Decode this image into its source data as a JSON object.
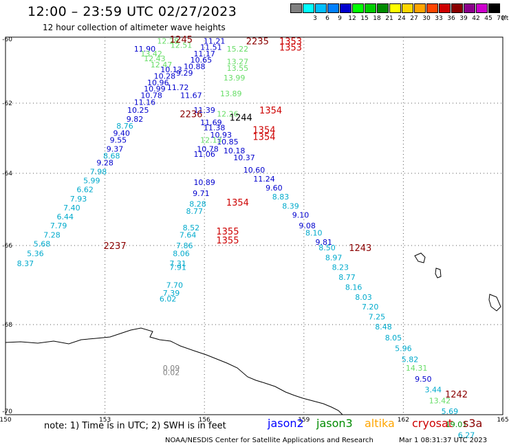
{
  "title": "12:00 – 23:59 UTC 02/27/2023",
  "subtitle": "12 hour collection of altimeter wave heights",
  "legend": {
    "unit": "(ft)",
    "swatches": [
      {
        "color": "#808080",
        "label": ""
      },
      {
        "color": "#00ffff",
        "label": "3"
      },
      {
        "color": "#00bfff",
        "label": "6"
      },
      {
        "color": "#0080ff",
        "label": "9"
      },
      {
        "color": "#0000cd",
        "label": "12"
      },
      {
        "color": "#00ff00",
        "label": "15"
      },
      {
        "color": "#00cd00",
        "label": "18"
      },
      {
        "color": "#008b00",
        "label": "21"
      },
      {
        "color": "#ffff00",
        "label": "24"
      },
      {
        "color": "#ffd700",
        "label": "27"
      },
      {
        "color": "#ffa500",
        "label": "30"
      },
      {
        "color": "#ff4500",
        "label": "33"
      },
      {
        "color": "#cd0000",
        "label": "36"
      },
      {
        "color": "#8b0000",
        "label": "39"
      },
      {
        "color": "#8b008b",
        "label": "42"
      },
      {
        "color": "#cd00cd",
        "label": "45"
      },
      {
        "color": "#000000",
        "label": "70"
      }
    ]
  },
  "axes": {
    "lon_ticks": [
      "150",
      "153",
      "156",
      "159",
      "162",
      "165"
    ],
    "lat_ticks": [
      "-60",
      "-62",
      "-64",
      "-66",
      "-68",
      "-70"
    ]
  },
  "footnote": "note: 1) Time is in UTC; 2) SWH is in feet",
  "satellites": [
    {
      "name": "jason2",
      "color": "#0000ff"
    },
    {
      "name": "jason3",
      "color": "#008b00"
    },
    {
      "name": "altika",
      "color": "#ffa500"
    },
    {
      "name": "cryosat",
      "color": "#cd0000"
    },
    {
      "name": "s3a",
      "color": "#8b0000"
    }
  ],
  "credit": "NOAA/NESDIS Center for Satellite Applications and Research",
  "credit_date": "Mar  1 08:31:37 UTC 2023",
  "observations": [
    {
      "lon": 154.9,
      "lat": -60.05,
      "v": "12.28",
      "c": "#66dd66"
    },
    {
      "lon": 155.3,
      "lat": -60.18,
      "v": "12.51",
      "c": "#66dd66"
    },
    {
      "lon": 154.2,
      "lat": -60.3,
      "v": "11.90",
      "c": "#0000cd"
    },
    {
      "lon": 154.4,
      "lat": -60.45,
      "v": "13.42",
      "c": "#66dd66"
    },
    {
      "lon": 154.5,
      "lat": -60.6,
      "v": "12.43",
      "c": "#66dd66"
    },
    {
      "lon": 154.7,
      "lat": -60.8,
      "v": "12.47",
      "c": "#66dd66"
    },
    {
      "lon": 155.0,
      "lat": -60.95,
      "v": "10.13",
      "c": "#0000cd"
    },
    {
      "lon": 154.8,
      "lat": -61.15,
      "v": "10.28",
      "c": "#0000cd"
    },
    {
      "lon": 154.6,
      "lat": -61.35,
      "v": "10.96",
      "c": "#0000cd"
    },
    {
      "lon": 154.5,
      "lat": -61.55,
      "v": "10.99",
      "c": "#0000cd"
    },
    {
      "lon": 154.4,
      "lat": -61.75,
      "v": "10.78",
      "c": "#0000cd"
    },
    {
      "lon": 154.2,
      "lat": -61.97,
      "v": "11.16",
      "c": "#0000cd"
    },
    {
      "lon": 154.0,
      "lat": -62.2,
      "v": "10.25",
      "c": "#0000cd"
    },
    {
      "lon": 153.9,
      "lat": -62.45,
      "v": "9.82",
      "c": "#0000cd"
    },
    {
      "lon": 153.6,
      "lat": -62.65,
      "v": "8.76",
      "c": "#00aacc"
    },
    {
      "lon": 153.5,
      "lat": -62.85,
      "v": "9.40",
      "c": "#0000cd"
    },
    {
      "lon": 153.4,
      "lat": -63.05,
      "v": "9.55",
      "c": "#0000cd"
    },
    {
      "lon": 153.3,
      "lat": -63.3,
      "v": "9.37",
      "c": "#0000cd"
    },
    {
      "lon": 153.2,
      "lat": -63.5,
      "v": "8.68",
      "c": "#00aacc"
    },
    {
      "lon": 153.0,
      "lat": -63.7,
      "v": "9.28",
      "c": "#0000cd"
    },
    {
      "lon": 152.8,
      "lat": -63.95,
      "v": "7.98",
      "c": "#00aacc"
    },
    {
      "lon": 152.6,
      "lat": -64.2,
      "v": "5.99",
      "c": "#00aacc"
    },
    {
      "lon": 152.4,
      "lat": -64.45,
      "v": "6.62",
      "c": "#00aacc"
    },
    {
      "lon": 152.2,
      "lat": -64.7,
      "v": "7.93",
      "c": "#00aacc"
    },
    {
      "lon": 152.0,
      "lat": -64.95,
      "v": "7.40",
      "c": "#00aacc"
    },
    {
      "lon": 151.8,
      "lat": -65.2,
      "v": "6.44",
      "c": "#00aacc"
    },
    {
      "lon": 151.6,
      "lat": -65.45,
      "v": "7.79",
      "c": "#00aacc"
    },
    {
      "lon": 151.4,
      "lat": -65.7,
      "v": "7.28",
      "c": "#00aacc"
    },
    {
      "lon": 151.1,
      "lat": -65.95,
      "v": "5.68",
      "c": "#00aacc"
    },
    {
      "lon": 150.9,
      "lat": -66.2,
      "v": "5.36",
      "c": "#00aacc"
    },
    {
      "lon": 150.6,
      "lat": -66.45,
      "v": "8.37",
      "c": "#00aacc"
    },
    {
      "lon": 156.3,
      "lat": -60.05,
      "v": "11.21",
      "c": "#0000cd"
    },
    {
      "lon": 156.2,
      "lat": -60.25,
      "v": "11.51",
      "c": "#0000cd"
    },
    {
      "lon": 156.0,
      "lat": -60.45,
      "v": "11.17",
      "c": "#0000cd"
    },
    {
      "lon": 155.9,
      "lat": -60.65,
      "v": "10.65",
      "c": "#0000cd"
    },
    {
      "lon": 155.7,
      "lat": -60.85,
      "v": "10.88",
      "c": "#0000cd"
    },
    {
      "lon": 155.4,
      "lat": -61.05,
      "v": "9.29",
      "c": "#0000cd"
    },
    {
      "lon": 155.2,
      "lat": -61.5,
      "v": "11.72",
      "c": "#0000cd"
    },
    {
      "lon": 155.6,
      "lat": -61.75,
      "v": "11.67",
      "c": "#0000cd"
    },
    {
      "lon": 156.0,
      "lat": -62.2,
      "v": "11.39",
      "c": "#0000cd"
    },
    {
      "lon": 156.2,
      "lat": -62.55,
      "v": "11.69",
      "c": "#0000cd"
    },
    {
      "lon": 156.5,
      "lat": -62.9,
      "v": "10.93",
      "c": "#0000cd"
    },
    {
      "lon": 156.7,
      "lat": -63.1,
      "v": "10.85",
      "c": "#0000cd"
    },
    {
      "lon": 156.9,
      "lat": -63.35,
      "v": "10.18",
      "c": "#0000cd"
    },
    {
      "lon": 157.2,
      "lat": -63.55,
      "v": "10.37",
      "c": "#0000cd"
    },
    {
      "lon": 157.5,
      "lat": -63.9,
      "v": "10.60",
      "c": "#0000cd"
    },
    {
      "lon": 157.8,
      "lat": -64.15,
      "v": "11.24",
      "c": "#0000cd"
    },
    {
      "lon": 158.1,
      "lat": -64.4,
      "v": "9.60",
      "c": "#0000cd"
    },
    {
      "lon": 158.3,
      "lat": -64.65,
      "v": "8.83",
      "c": "#00aacc"
    },
    {
      "lon": 158.6,
      "lat": -64.9,
      "v": "8.39",
      "c": "#00aacc"
    },
    {
      "lon": 158.9,
      "lat": -65.15,
      "v": "9.10",
      "c": "#0000cd"
    },
    {
      "lon": 159.1,
      "lat": -65.45,
      "v": "9.08",
      "c": "#0000cd"
    },
    {
      "lon": 159.3,
      "lat": -65.65,
      "v": "8.10",
      "c": "#00aacc"
    },
    {
      "lon": 159.6,
      "lat": -65.9,
      "v": "9.81",
      "c": "#0000cd"
    },
    {
      "lon": 159.7,
      "lat": -66.05,
      "v": "8.50",
      "c": "#00aacc"
    },
    {
      "lon": 159.9,
      "lat": -66.3,
      "v": "8.97",
      "c": "#00aacc"
    },
    {
      "lon": 160.1,
      "lat": -66.55,
      "v": "8.23",
      "c": "#00aacc"
    },
    {
      "lon": 160.3,
      "lat": -66.8,
      "v": "8.77",
      "c": "#00aacc"
    },
    {
      "lon": 160.5,
      "lat": -67.05,
      "v": "8.16",
      "c": "#00aacc"
    },
    {
      "lon": 160.8,
      "lat": -67.3,
      "v": "8.03",
      "c": "#00aacc"
    },
    {
      "lon": 161.0,
      "lat": -67.55,
      "v": "7.20",
      "c": "#00aacc"
    },
    {
      "lon": 161.2,
      "lat": -67.8,
      "v": "7.25",
      "c": "#00aacc"
    },
    {
      "lon": 161.4,
      "lat": -68.05,
      "v": "8.48",
      "c": "#00aacc"
    },
    {
      "lon": 161.7,
      "lat": -68.3,
      "v": "8.05",
      "c": "#00aacc"
    },
    {
      "lon": 162.0,
      "lat": -68.55,
      "v": "5.96",
      "c": "#00aacc"
    },
    {
      "lon": 162.2,
      "lat": -68.8,
      "v": "5.82",
      "c": "#00aacc"
    },
    {
      "lon": 162.4,
      "lat": -69.0,
      "v": "14.31",
      "c": "#66dd66"
    },
    {
      "lon": 162.6,
      "lat": -69.25,
      "v": "9.50",
      "c": "#0000cd"
    },
    {
      "lon": 162.9,
      "lat": -69.5,
      "v": "3.44",
      "c": "#00aacc"
    },
    {
      "lon": 163.1,
      "lat": -69.75,
      "v": "13.42",
      "c": "#66dd66"
    },
    {
      "lon": 163.4,
      "lat": -70.0,
      "v": "5.69",
      "c": "#00aacc"
    },
    {
      "lon": 163.6,
      "lat": -70.3,
      "v": "19.01",
      "c": "#008b00"
    },
    {
      "lon": 163.9,
      "lat": -70.55,
      "v": "6.27",
      "c": "#00aacc"
    },
    {
      "lon": 157.0,
      "lat": -60.3,
      "v": "15.22",
      "c": "#66dd66"
    },
    {
      "lon": 157.0,
      "lat": -60.7,
      "v": "13.27",
      "c": "#66dd66"
    },
    {
      "lon": 157.0,
      "lat": -60.9,
      "v": "13.55",
      "c": "#66dd66"
    },
    {
      "lon": 156.9,
      "lat": -61.2,
      "v": "13.99",
      "c": "#66dd66"
    },
    {
      "lon": 156.8,
      "lat": -61.7,
      "v": "13.89",
      "c": "#66dd66"
    },
    {
      "lon": 156.7,
      "lat": -62.3,
      "v": "12.26",
      "c": "#66dd66"
    },
    {
      "lon": 156.3,
      "lat": -62.7,
      "v": "11.38",
      "c": "#0000cd"
    },
    {
      "lon": 156.2,
      "lat": -63.05,
      "v": "12.13",
      "c": "#66dd66"
    },
    {
      "lon": 156.1,
      "lat": -63.3,
      "v": "10.78",
      "c": "#0000cd"
    },
    {
      "lon": 156.0,
      "lat": -63.45,
      "v": "11.06",
      "c": "#0000cd"
    },
    {
      "lon": 156.0,
      "lat": -64.25,
      "v": "10.89",
      "c": "#0000cd"
    },
    {
      "lon": 155.9,
      "lat": -64.55,
      "v": "9.71",
      "c": "#0000cd"
    },
    {
      "lon": 155.8,
      "lat": -64.85,
      "v": "8.28",
      "c": "#00aacc"
    },
    {
      "lon": 155.7,
      "lat": -65.05,
      "v": "8.77",
      "c": "#00aacc"
    },
    {
      "lon": 155.6,
      "lat": -65.5,
      "v": "8.52",
      "c": "#00aacc"
    },
    {
      "lon": 155.5,
      "lat": -65.7,
      "v": "7.64",
      "c": "#00aacc"
    },
    {
      "lon": 155.4,
      "lat": -66.0,
      "v": "7.86",
      "c": "#00aacc"
    },
    {
      "lon": 155.3,
      "lat": -66.2,
      "v": "8.06",
      "c": "#00aacc"
    },
    {
      "lon": 155.2,
      "lat": -66.45,
      "v": "7.31",
      "c": "#00aacc"
    },
    {
      "lon": 155.2,
      "lat": -66.55,
      "v": "7.91",
      "c": "#00aacc"
    },
    {
      "lon": 155.1,
      "lat": -67.0,
      "v": "7.70",
      "c": "#00aacc"
    },
    {
      "lon": 155.0,
      "lat": -67.2,
      "v": "7.39",
      "c": "#00aacc"
    },
    {
      "lon": 154.9,
      "lat": -67.35,
      "v": "6.02",
      "c": "#00aacc"
    },
    {
      "lon": 155.0,
      "lat": -69.0,
      "v": "0.09",
      "c": "#808080"
    },
    {
      "lon": 155.0,
      "lat": -69.1,
      "v": "0.02",
      "c": "#808080"
    }
  ],
  "pass_times": [
    {
      "lon": 155.3,
      "lat": -60.0,
      "t": "1245",
      "c": "#8b0000"
    },
    {
      "lon": 157.6,
      "lat": -60.05,
      "t": "2235",
      "c": "#8b0000"
    },
    {
      "lon": 158.6,
      "lat": -60.05,
      "t": "1353",
      "c": "#cd0000"
    },
    {
      "lon": 158.6,
      "lat": -60.25,
      "t": "1353",
      "c": "#cd0000"
    },
    {
      "lon": 155.6,
      "lat": -62.3,
      "t": "2236",
      "c": "#8b0000"
    },
    {
      "lon": 157.1,
      "lat": -62.4,
      "t": "1244",
      "c": "#000000"
    },
    {
      "lon": 158.0,
      "lat": -62.2,
      "t": "1354",
      "c": "#cd0000"
    },
    {
      "lon": 157.8,
      "lat": -62.75,
      "t": "1354",
      "c": "#cd0000"
    },
    {
      "lon": 157.8,
      "lat": -62.95,
      "t": "1354",
      "c": "#cd0000"
    },
    {
      "lon": 157.0,
      "lat": -64.8,
      "t": "1354",
      "c": "#cd0000"
    },
    {
      "lon": 156.7,
      "lat": -65.6,
      "t": "1355",
      "c": "#cd0000"
    },
    {
      "lon": 156.7,
      "lat": -65.85,
      "t": "1355",
      "c": "#cd0000"
    },
    {
      "lon": 153.3,
      "lat": -66.0,
      "t": "2237",
      "c": "#8b0000"
    },
    {
      "lon": 160.7,
      "lat": -66.05,
      "t": "1243",
      "c": "#8b0000"
    },
    {
      "lon": 163.6,
      "lat": -69.6,
      "t": "1242",
      "c": "#8b0000"
    }
  ]
}
